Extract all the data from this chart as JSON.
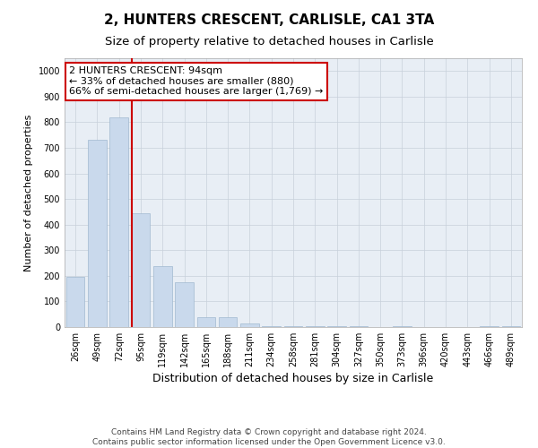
{
  "title": "2, HUNTERS CRESCENT, CARLISLE, CA1 3TA",
  "subtitle": "Size of property relative to detached houses in Carlisle",
  "xlabel": "Distribution of detached houses by size in Carlisle",
  "ylabel": "Number of detached properties",
  "categories": [
    "26sqm",
    "49sqm",
    "72sqm",
    "95sqm",
    "119sqm",
    "142sqm",
    "165sqm",
    "188sqm",
    "211sqm",
    "234sqm",
    "258sqm",
    "281sqm",
    "304sqm",
    "327sqm",
    "350sqm",
    "373sqm",
    "396sqm",
    "420sqm",
    "443sqm",
    "466sqm",
    "489sqm"
  ],
  "values": [
    195,
    730,
    820,
    445,
    238,
    175,
    40,
    40,
    15,
    5,
    5,
    5,
    5,
    5,
    0,
    5,
    0,
    0,
    0,
    5,
    5
  ],
  "bar_color": "#c9d9ec",
  "bar_edge_color": "#a0b8d0",
  "highlight_line_index": 3,
  "highlight_line_color": "#cc0000",
  "annotation_text": "2 HUNTERS CRESCENT: 94sqm\n← 33% of detached houses are smaller (880)\n66% of semi-detached houses are larger (1,769) →",
  "annotation_box_color": "#ffffff",
  "annotation_box_edge_color": "#cc0000",
  "ylim": [
    0,
    1050
  ],
  "yticks": [
    0,
    100,
    200,
    300,
    400,
    500,
    600,
    700,
    800,
    900,
    1000
  ],
  "footer_text": "Contains HM Land Registry data © Crown copyright and database right 2024.\nContains public sector information licensed under the Open Government Licence v3.0.",
  "bg_color": "#ffffff",
  "plot_bg_color": "#e8eef5",
  "grid_color": "#c8d0db",
  "title_fontsize": 11,
  "subtitle_fontsize": 9.5,
  "xlabel_fontsize": 9,
  "ylabel_fontsize": 8,
  "tick_fontsize": 7,
  "annotation_fontsize": 8,
  "footer_fontsize": 6.5
}
